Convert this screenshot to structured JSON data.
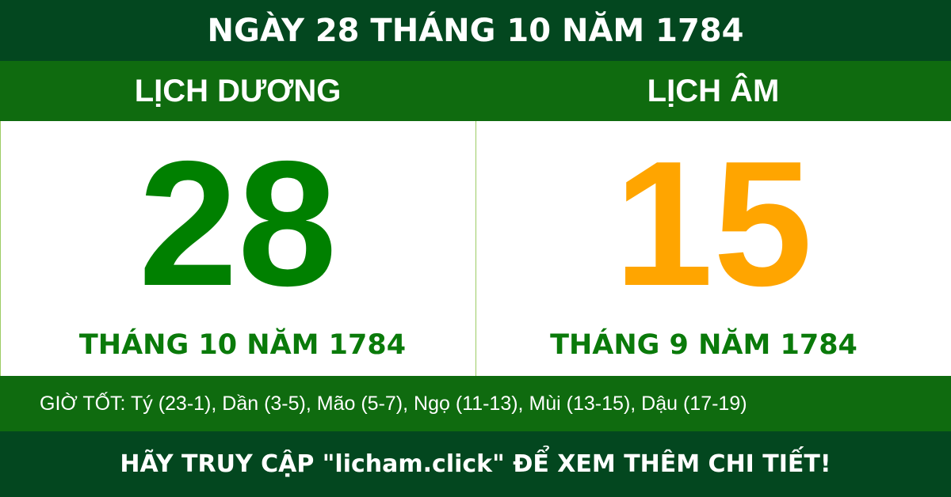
{
  "title": "NGÀY 28 THÁNG 10 NĂM 1784",
  "solar": {
    "label": "LỊCH DƯƠNG",
    "day": "28",
    "month_year": "THÁNG 10 NĂM 1784"
  },
  "lunar": {
    "label": "LỊCH ÂM",
    "day": "15",
    "month_year": "THÁNG 9 NĂM 1784"
  },
  "good_hours": "GIỜ TỐT: Tý (23-1), Dần (3-5), Mão (5-7), Ngọ (11-13), Mùi (13-15), Dậu (17-19)",
  "footer": "HÃY TRUY CẬP \"licham.click\" ĐỂ XEM THÊM CHI TIẾT!",
  "colors": {
    "dark_green": "#03471f",
    "green": "#0f6b0f",
    "solar_day": "#008000",
    "lunar_day": "#ffa500"
  }
}
